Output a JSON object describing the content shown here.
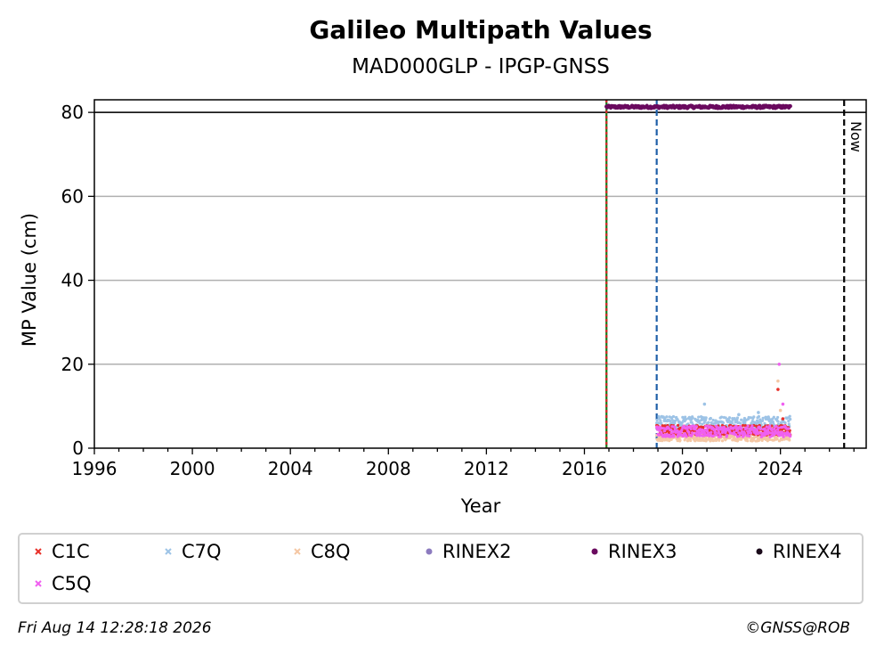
{
  "chart_data": {
    "type": "scatter",
    "title": "Galileo Multipath Values",
    "subtitle": "MAD000GLP - IPGP-GNSS",
    "xlabel": "Year",
    "ylabel": "MP Value (cm)",
    "xlim": [
      1996,
      2027.5
    ],
    "ylim": [
      0,
      83
    ],
    "x_ticks": [
      1996,
      2000,
      2004,
      2008,
      2012,
      2016,
      2020,
      2024
    ],
    "x_tick_labels": [
      "1996",
      "2000",
      "2004",
      "2008",
      "2012",
      "2016",
      "2020",
      "2024"
    ],
    "y_ticks": [
      0,
      20,
      40,
      60,
      80
    ],
    "y_tick_labels": [
      "0",
      "20",
      "40",
      "60",
      "80"
    ],
    "grid": "horizontal",
    "reference_line_y": 80,
    "vertical_lines": [
      {
        "x": 2016.9,
        "color": "#1a7a1a",
        "style": "solid"
      },
      {
        "x": 2016.9,
        "color": "#d62728",
        "style": "dotted"
      },
      {
        "x": 2018.95,
        "color": "#1f5fa8",
        "style": "dashed"
      },
      {
        "x": 2026.6,
        "color": "#000000",
        "style": "dashed",
        "label": "Now"
      }
    ],
    "series": [
      {
        "name": "C1C",
        "color": "#e8312a",
        "marker": "x",
        "x_range": [
          2018.95,
          2024.4
        ],
        "y_center": 4.3,
        "y_spread": 1.2,
        "spikes": [
          [
            2023.9,
            14
          ],
          [
            2024.1,
            7
          ]
        ]
      },
      {
        "name": "C7Q",
        "color": "#9dc3e6",
        "marker": "x",
        "x_range": [
          2018.95,
          2024.4
        ],
        "y_center": 6.0,
        "y_spread": 1.6,
        "spikes": [
          [
            2020.9,
            10.5
          ],
          [
            2022.3,
            8
          ],
          [
            2023.1,
            8.5
          ]
        ]
      },
      {
        "name": "C8Q",
        "color": "#f4c7a4",
        "marker": "x",
        "x_range": [
          2018.95,
          2024.4
        ],
        "y_center": 2.6,
        "y_spread": 0.9,
        "spikes": [
          [
            2023.9,
            16
          ],
          [
            2024.0,
            9
          ]
        ]
      },
      {
        "name": "RINEX2",
        "color": "#8c7bbf",
        "marker": "o",
        "x_range": [],
        "y_center": 0,
        "y_spread": 0,
        "spikes": []
      },
      {
        "name": "RINEX3",
        "color": "#6a0a5f",
        "marker": "o",
        "x_range": [
          2016.9,
          2024.4
        ],
        "y_center": 81.3,
        "y_spread": 0.3,
        "spikes": []
      },
      {
        "name": "RINEX4",
        "color": "#1a0a1a",
        "marker": "o",
        "x_range": [],
        "y_center": 0,
        "y_spread": 0,
        "spikes": []
      },
      {
        "name": "C5Q",
        "color": "#f060f0",
        "marker": "x",
        "x_range": [
          2018.95,
          2024.4
        ],
        "y_center": 4.0,
        "y_spread": 1.3,
        "spikes": [
          [
            2023.95,
            20
          ],
          [
            2024.1,
            10.5
          ]
        ]
      }
    ],
    "legend": [
      "C1C",
      "C7Q",
      "C8Q",
      "RINEX2",
      "RINEX3",
      "RINEX4",
      "C5Q"
    ],
    "legend_placement": "bottom"
  },
  "footer": {
    "timestamp": "Fri Aug 14 12:28:18 2026",
    "credit": "©GNSS@ROB"
  }
}
